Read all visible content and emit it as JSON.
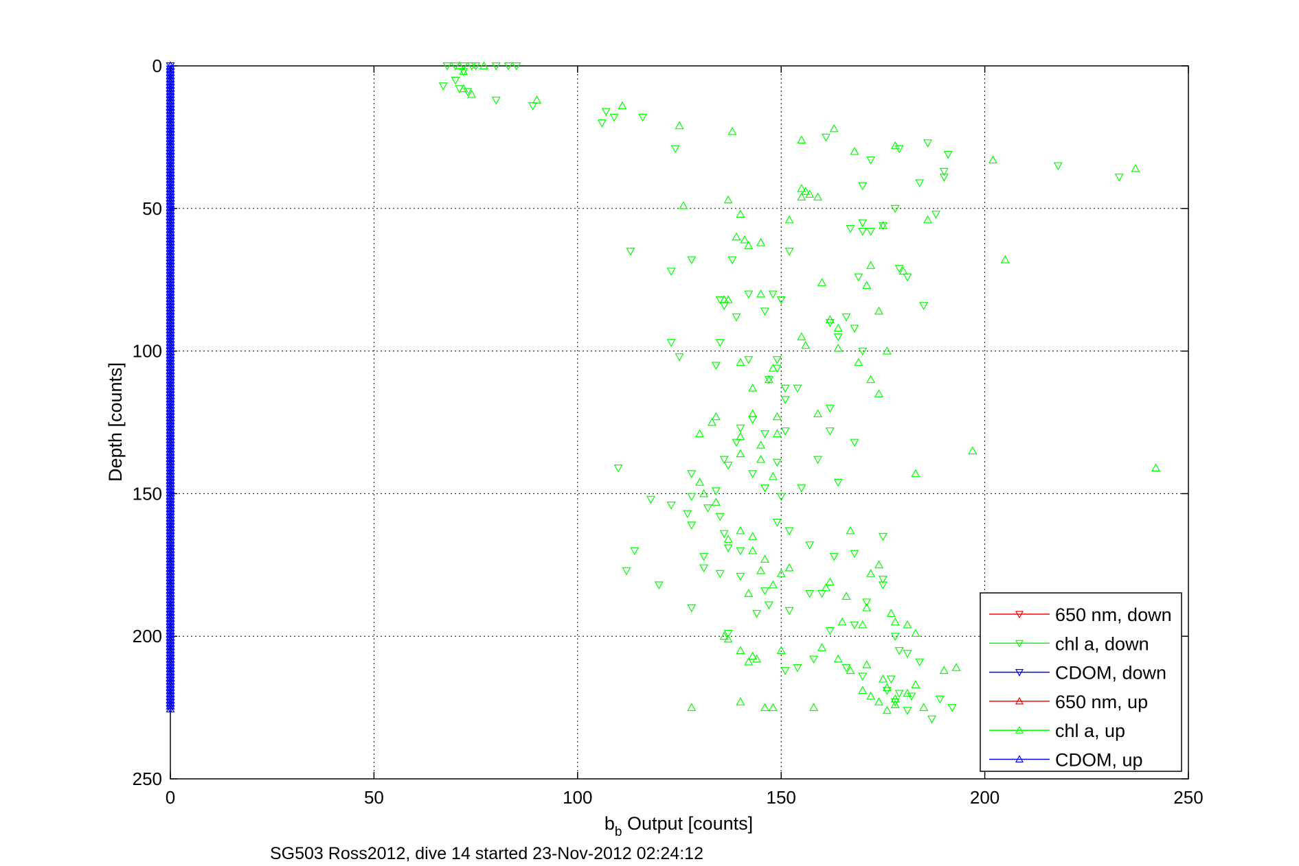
{
  "chart_data": {
    "type": "scatter",
    "xlabel_main": "b",
    "xlabel_sub": "b",
    "xlabel_rest": " Output [counts]",
    "ylabel": "Depth [counts]",
    "caption": "SG503 Ross2012, dive 14 started 23-Nov-2012 02:24:12",
    "xlim": [
      0,
      250
    ],
    "ylim": [
      0,
      250
    ],
    "y_reversed": true,
    "grid": true,
    "legend_position": "bottom-right",
    "xticks": [
      "0",
      "50",
      "100",
      "150",
      "200",
      "250"
    ],
    "yticks": [
      "0",
      "50",
      "100",
      "150",
      "200",
      "250"
    ],
    "series": [
      {
        "name": "650 nm, down",
        "color": "#ff0000",
        "marker": "triangle-down",
        "points": []
      },
      {
        "name": "chl a, down",
        "color": "#00ff00",
        "marker": "triangle-down",
        "points": [
          [
            70,
            0
          ],
          [
            72,
            0
          ],
          [
            74,
            0
          ],
          [
            68,
            0
          ],
          [
            75,
            0
          ],
          [
            80,
            0
          ],
          [
            83,
            0
          ],
          [
            85,
            0
          ],
          [
            72,
            2
          ],
          [
            67,
            7
          ],
          [
            70,
            5
          ],
          [
            71,
            8
          ],
          [
            73,
            9
          ],
          [
            80,
            12
          ],
          [
            89,
            14
          ],
          [
            106,
            20
          ],
          [
            107,
            16
          ],
          [
            109,
            18
          ],
          [
            116,
            18
          ],
          [
            124,
            29
          ],
          [
            161,
            25
          ],
          [
            172,
            33
          ],
          [
            179,
            29
          ],
          [
            186,
            27
          ],
          [
            191,
            31
          ],
          [
            170,
            42
          ],
          [
            184,
            41
          ],
          [
            190,
            37
          ],
          [
            190,
            39
          ],
          [
            218,
            35
          ],
          [
            233,
            39
          ],
          [
            170,
            55
          ],
          [
            170,
            58
          ],
          [
            178,
            50
          ],
          [
            188,
            52
          ],
          [
            152,
            65
          ],
          [
            138,
            68
          ],
          [
            128,
            68
          ],
          [
            123,
            72
          ],
          [
            113,
            65
          ],
          [
            142,
            80
          ],
          [
            148,
            80
          ],
          [
            135,
            82
          ],
          [
            136,
            84
          ],
          [
            150,
            82
          ],
          [
            146,
            86
          ],
          [
            166,
            88
          ],
          [
            168,
            92
          ],
          [
            175,
            56
          ],
          [
            172,
            58
          ],
          [
            167,
            57
          ],
          [
            179,
            71
          ],
          [
            185,
            84
          ],
          [
            169,
            74
          ],
          [
            181,
            74
          ],
          [
            139,
            88
          ],
          [
            162,
            90
          ],
          [
            164,
            95
          ],
          [
            170,
            100
          ],
          [
            142,
            103
          ],
          [
            149,
            103
          ],
          [
            149,
            106
          ],
          [
            147,
            110
          ],
          [
            154,
            113
          ],
          [
            123,
            97
          ],
          [
            125,
            102
          ],
          [
            135,
            97
          ],
          [
            134,
            105
          ],
          [
            151,
            113
          ],
          [
            151,
            117
          ],
          [
            151,
            128
          ],
          [
            162,
            120
          ],
          [
            162,
            128
          ],
          [
            143,
            124
          ],
          [
            139,
            132
          ],
          [
            140,
            127
          ],
          [
            146,
            129
          ],
          [
            168,
            132
          ],
          [
            159,
            138
          ],
          [
            136,
            138
          ],
          [
            149,
            139
          ],
          [
            143,
            143
          ],
          [
            137,
            140
          ],
          [
            110,
            141
          ],
          [
            128,
            143
          ],
          [
            128,
            151
          ],
          [
            134,
            149
          ],
          [
            146,
            148
          ],
          [
            150,
            151
          ],
          [
            155,
            148
          ],
          [
            164,
            146
          ],
          [
            123,
            154
          ],
          [
            127,
            157
          ],
          [
            128,
            161
          ],
          [
            118,
            152
          ],
          [
            132,
            155
          ],
          [
            135,
            158
          ],
          [
            149,
            160
          ],
          [
            152,
            163
          ],
          [
            137,
            169
          ],
          [
            140,
            170
          ],
          [
            136,
            164
          ],
          [
            157,
            168
          ],
          [
            175,
            165
          ],
          [
            168,
            171
          ],
          [
            163,
            172
          ],
          [
            114,
            170
          ],
          [
            112,
            177
          ],
          [
            120,
            182
          ],
          [
            131,
            176
          ],
          [
            131,
            172
          ],
          [
            135,
            178
          ],
          [
            140,
            179
          ],
          [
            146,
            184
          ],
          [
            160,
            185
          ],
          [
            171,
            188
          ],
          [
            175,
            182
          ],
          [
            175,
            180
          ],
          [
            147,
            189
          ],
          [
            152,
            191
          ],
          [
            157,
            185
          ],
          [
            128,
            190
          ],
          [
            137,
            199
          ],
          [
            144,
            192
          ],
          [
            162,
            198
          ],
          [
            168,
            196
          ],
          [
            178,
            200
          ],
          [
            179,
            205
          ],
          [
            181,
            206
          ],
          [
            184,
            209
          ],
          [
            154,
            211
          ],
          [
            151,
            212
          ],
          [
            158,
            208
          ],
          [
            166,
            211
          ],
          [
            177,
            215
          ],
          [
            179,
            220
          ],
          [
            182,
            221
          ],
          [
            170,
            214
          ],
          [
            176,
            219
          ],
          [
            178,
            223
          ],
          [
            181,
            226
          ],
          [
            187,
            229
          ],
          [
            189,
            222
          ],
          [
            192,
            225
          ]
        ]
      },
      {
        "name": "CDOM, down",
        "color": "#0000ff",
        "marker": "triangle-down",
        "points": "zero-column"
      },
      {
        "name": "650 nm, up",
        "color": "#ff0000",
        "marker": "triangle-up",
        "points": []
      },
      {
        "name": "chl a, up",
        "color": "#00ff00",
        "marker": "triangle-up",
        "points": [
          [
            77,
            0
          ],
          [
            71,
            0
          ],
          [
            72,
            2
          ],
          [
            72,
            8
          ],
          [
            74,
            10
          ],
          [
            90,
            12
          ],
          [
            111,
            14
          ],
          [
            125,
            21
          ],
          [
            138,
            23
          ],
          [
            155,
            26
          ],
          [
            163,
            22
          ],
          [
            168,
            30
          ],
          [
            178,
            28
          ],
          [
            202,
            33
          ],
          [
            237,
            36
          ],
          [
            155,
            43
          ],
          [
            156,
            44
          ],
          [
            157,
            45
          ],
          [
            159,
            46
          ],
          [
            137,
            47
          ],
          [
            155,
            46
          ],
          [
            126,
            49
          ],
          [
            140,
            52
          ],
          [
            152,
            54
          ],
          [
            139,
            60
          ],
          [
            141,
            61
          ],
          [
            142,
            63
          ],
          [
            145,
            62
          ],
          [
            175,
            56
          ],
          [
            186,
            54
          ],
          [
            205,
            68
          ],
          [
            172,
            70
          ],
          [
            180,
            72
          ],
          [
            160,
            76
          ],
          [
            171,
            77
          ],
          [
            174,
            86
          ],
          [
            145,
            80
          ],
          [
            137,
            82
          ],
          [
            136,
            82
          ],
          [
            162,
            89
          ],
          [
            164,
            92
          ],
          [
            176,
            100
          ],
          [
            155,
            95
          ],
          [
            156,
            98
          ],
          [
            164,
            99
          ],
          [
            140,
            104
          ],
          [
            148,
            106
          ],
          [
            147,
            110
          ],
          [
            143,
            113
          ],
          [
            143,
            122
          ],
          [
            149,
            123
          ],
          [
            159,
            122
          ],
          [
            130,
            129
          ],
          [
            134,
            123
          ],
          [
            133,
            125
          ],
          [
            149,
            129
          ],
          [
            140,
            130
          ],
          [
            145,
            133
          ],
          [
            145,
            138
          ],
          [
            140,
            136
          ],
          [
            169,
            104
          ],
          [
            172,
            110
          ],
          [
            174,
            115
          ],
          [
            197,
            135
          ],
          [
            242,
            141
          ],
          [
            183,
            143
          ],
          [
            130,
            146
          ],
          [
            131,
            150
          ],
          [
            148,
            144
          ],
          [
            134,
            153
          ],
          [
            137,
            166
          ],
          [
            140,
            163
          ],
          [
            143,
            165
          ],
          [
            145,
            177
          ],
          [
            143,
            170
          ],
          [
            146,
            173
          ],
          [
            150,
            178
          ],
          [
            167,
            163
          ],
          [
            172,
            178
          ],
          [
            174,
            175
          ],
          [
            142,
            185
          ],
          [
            148,
            182
          ],
          [
            152,
            176
          ],
          [
            161,
            183
          ],
          [
            162,
            181
          ],
          [
            166,
            186
          ],
          [
            171,
            190
          ],
          [
            177,
            192
          ],
          [
            178,
            195
          ],
          [
            165,
            195
          ],
          [
            170,
            196
          ],
          [
            181,
            196
          ],
          [
            183,
            199
          ],
          [
            136,
            200
          ],
          [
            137,
            201
          ],
          [
            140,
            205
          ],
          [
            143,
            207
          ],
          [
            144,
            208
          ],
          [
            142,
            209
          ],
          [
            150,
            205
          ],
          [
            160,
            204
          ],
          [
            164,
            208
          ],
          [
            167,
            212
          ],
          [
            171,
            210
          ],
          [
            175,
            215
          ],
          [
            183,
            217
          ],
          [
            190,
            212
          ],
          [
            193,
            211
          ],
          [
            170,
            219
          ],
          [
            172,
            221
          ],
          [
            174,
            223
          ],
          [
            176,
            218
          ],
          [
            178,
            222
          ],
          [
            181,
            220
          ],
          [
            176,
            226
          ],
          [
            178,
            224
          ],
          [
            185,
            225
          ],
          [
            140,
            223
          ],
          [
            146,
            225
          ],
          [
            158,
            225
          ],
          [
            128,
            225
          ],
          [
            148,
            225
          ]
        ]
      },
      {
        "name": "CDOM, up",
        "color": "#0000ff",
        "marker": "triangle-up",
        "points": "zero-column"
      }
    ]
  }
}
